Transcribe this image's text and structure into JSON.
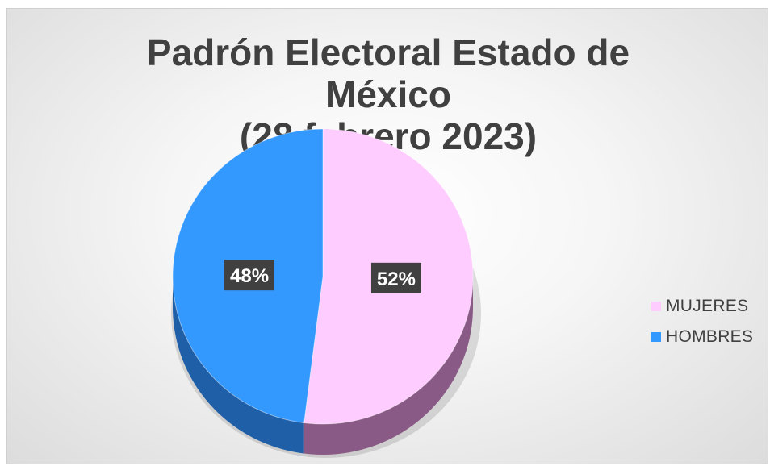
{
  "chart_data": {
    "type": "pie",
    "title_lines": [
      "Padrón Electoral Estado de",
      "México",
      "(28 febrero 2023)"
    ],
    "slices": [
      {
        "name": "MUJERES",
        "value": 52,
        "label": "52%",
        "color": "#FFCCFF"
      },
      {
        "name": "HOMBRES",
        "value": 48,
        "label": "48%",
        "color": "#3399FF"
      }
    ],
    "legend_position": "right",
    "style": "3d"
  }
}
